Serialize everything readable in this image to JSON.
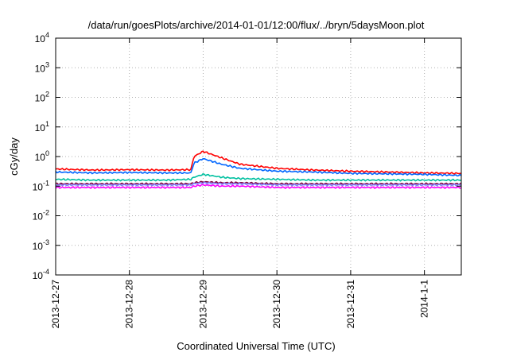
{
  "chart_data": {
    "type": "line",
    "title": "/data/run/goesPlots/archive/2014-01-01/12:00/flux/../bryn/5daysMoon.plot",
    "xlabel": "Coordinated Universal Time (UTC)",
    "ylabel": "cGy/day",
    "yscale": "log",
    "ylim": [
      0.0001,
      10000
    ],
    "xlim": [
      "2013-12-27 00:00",
      "2014-01-01 12:00"
    ],
    "grid": true,
    "xticks": [
      "2013-12-27",
      "2013-12-28",
      "2013-12-29",
      "2013-12-30",
      "2013-12-31",
      "2014-1-1"
    ],
    "yticks": [
      {
        "value": 0.0001,
        "base": "10",
        "exp": "-4"
      },
      {
        "value": 0.001,
        "base": "10",
        "exp": "-3"
      },
      {
        "value": 0.01,
        "base": "10",
        "exp": "-2"
      },
      {
        "value": 0.1,
        "base": "10",
        "exp": "-1"
      },
      {
        "value": 1,
        "base": "10",
        "exp": "0"
      },
      {
        "value": 10,
        "base": "10",
        "exp": "1"
      },
      {
        "value": 100,
        "base": "10",
        "exp": "2"
      },
      {
        "value": 1000,
        "base": "10",
        "exp": "3"
      },
      {
        "value": 10000,
        "base": "10",
        "exp": "4"
      }
    ],
    "series": [
      {
        "color": "#ff0000",
        "x": [
          "2013-12-27 00:00",
          "2013-12-27 12:00",
          "2013-12-28 00:00",
          "2013-12-28 12:00",
          "2013-12-28 20:00",
          "2013-12-28 21:00",
          "2013-12-29 00:00",
          "2013-12-29 06:00",
          "2013-12-29 12:00",
          "2013-12-30 00:00",
          "2013-12-30 12:00",
          "2013-12-31 00:00",
          "2013-12-31 12:00",
          "2014-01-01 00:00",
          "2014-01-01 12:00"
        ],
        "y": [
          0.38,
          0.35,
          0.36,
          0.35,
          0.36,
          1.0,
          1.5,
          0.9,
          0.55,
          0.4,
          0.35,
          0.32,
          0.3,
          0.28,
          0.27
        ]
      },
      {
        "color": "#0066ff",
        "x": [
          "2013-12-27 00:00",
          "2013-12-27 12:00",
          "2013-12-28 00:00",
          "2013-12-28 12:00",
          "2013-12-28 20:00",
          "2013-12-28 21:00",
          "2013-12-29 00:00",
          "2013-12-29 06:00",
          "2013-12-29 12:00",
          "2013-12-30 00:00",
          "2013-12-30 12:00",
          "2013-12-31 00:00",
          "2013-12-31 12:00",
          "2014-01-01 00:00",
          "2014-01-01 12:00"
        ],
        "y": [
          0.3,
          0.28,
          0.29,
          0.28,
          0.28,
          0.6,
          0.85,
          0.55,
          0.4,
          0.32,
          0.3,
          0.27,
          0.26,
          0.25,
          0.23
        ]
      },
      {
        "color": "#00c0a0",
        "x": [
          "2013-12-27 00:00",
          "2013-12-27 12:00",
          "2013-12-28 00:00",
          "2013-12-28 12:00",
          "2013-12-28 20:00",
          "2013-12-28 21:00",
          "2013-12-29 00:00",
          "2013-12-29 06:00",
          "2013-12-29 12:00",
          "2013-12-30 00:00",
          "2013-12-30 12:00",
          "2013-12-31 00:00",
          "2013-12-31 12:00",
          "2014-01-01 00:00",
          "2014-01-01 12:00"
        ],
        "y": [
          0.17,
          0.16,
          0.16,
          0.16,
          0.17,
          0.2,
          0.25,
          0.2,
          0.18,
          0.17,
          0.16,
          0.16,
          0.16,
          0.16,
          0.16
        ]
      },
      {
        "color": "#800040",
        "x": [
          "2013-12-27 00:00",
          "2013-12-27 12:00",
          "2013-12-28 00:00",
          "2013-12-28 12:00",
          "2013-12-28 20:00",
          "2013-12-28 21:00",
          "2013-12-29 00:00",
          "2013-12-29 06:00",
          "2013-12-29 12:00",
          "2013-12-30 00:00",
          "2013-12-30 12:00",
          "2013-12-31 00:00",
          "2013-12-31 12:00",
          "2014-01-01 00:00",
          "2014-01-01 12:00"
        ],
        "y": [
          0.12,
          0.12,
          0.12,
          0.12,
          0.12,
          0.13,
          0.14,
          0.13,
          0.13,
          0.12,
          0.12,
          0.12,
          0.12,
          0.12,
          0.12
        ]
      },
      {
        "color": "#8080ff",
        "x": [
          "2013-12-27 00:00",
          "2013-12-27 12:00",
          "2013-12-28 00:00",
          "2013-12-28 12:00",
          "2013-12-28 20:00",
          "2013-12-28 21:00",
          "2013-12-29 00:00",
          "2013-12-29 06:00",
          "2013-12-29 12:00",
          "2013-12-30 00:00",
          "2013-12-30 12:00",
          "2013-12-31 00:00",
          "2013-12-31 12:00",
          "2014-01-01 00:00",
          "2014-01-01 12:00"
        ],
        "y": [
          0.11,
          0.11,
          0.11,
          0.11,
          0.11,
          0.12,
          0.13,
          0.12,
          0.12,
          0.11,
          0.11,
          0.11,
          0.11,
          0.11,
          0.11
        ]
      },
      {
        "color": "#ff00ff",
        "x": [
          "2013-12-27 00:00",
          "2013-12-27 12:00",
          "2013-12-28 00:00",
          "2013-12-28 12:00",
          "2013-12-28 20:00",
          "2013-12-28 21:00",
          "2013-12-29 00:00",
          "2013-12-29 06:00",
          "2013-12-29 12:00",
          "2013-12-30 00:00",
          "2013-12-30 12:00",
          "2013-12-31 00:00",
          "2013-12-31 12:00",
          "2014-01-01 00:00",
          "2014-01-01 12:00"
        ],
        "y": [
          0.09,
          0.09,
          0.09,
          0.09,
          0.09,
          0.1,
          0.11,
          0.1,
          0.1,
          0.09,
          0.09,
          0.09,
          0.09,
          0.09,
          0.09
        ]
      }
    ]
  }
}
